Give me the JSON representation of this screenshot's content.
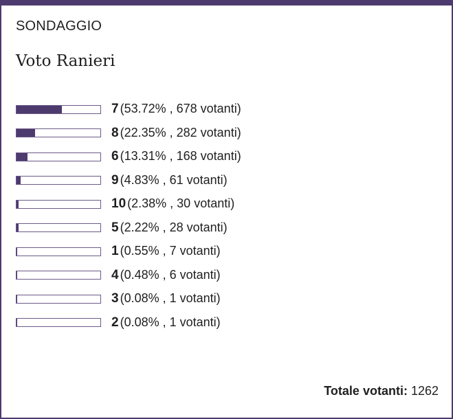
{
  "poll": {
    "section_label": "SONDAGGIO",
    "question": "Voto Ranieri",
    "accent_color": "#4d3a6e",
    "options": [
      {
        "label": "7",
        "percent": 53.72,
        "stats": "(53.72% , 678 votanti)"
      },
      {
        "label": "8",
        "percent": 22.35,
        "stats": "(22.35% , 282 votanti)"
      },
      {
        "label": "6",
        "percent": 13.31,
        "stats": "(13.31% , 168 votanti)"
      },
      {
        "label": "9",
        "percent": 4.83,
        "stats": "(4.83% , 61 votanti)"
      },
      {
        "label": "10",
        "percent": 2.38,
        "stats": "(2.38% , 30 votanti)"
      },
      {
        "label": "5",
        "percent": 2.22,
        "stats": "(2.22% , 28 votanti)"
      },
      {
        "label": "1",
        "percent": 0.55,
        "stats": "(0.55% , 7 votanti)"
      },
      {
        "label": "4",
        "percent": 0.48,
        "stats": "(0.48% , 6 votanti)"
      },
      {
        "label": "3",
        "percent": 0.08,
        "stats": "(0.08% , 1 votanti)"
      },
      {
        "label": "2",
        "percent": 0.08,
        "stats": "(0.08% , 1 votanti)"
      }
    ],
    "total_label": "Totale votanti:",
    "total_value": "1262"
  }
}
